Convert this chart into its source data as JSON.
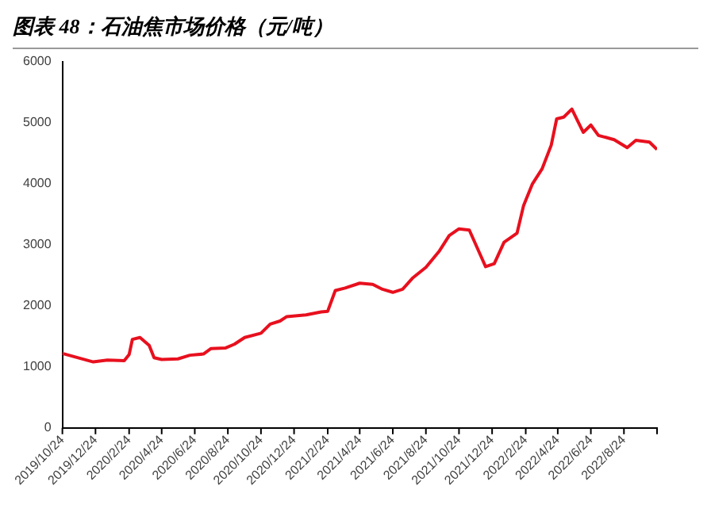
{
  "chart_data": {
    "type": "line",
    "title": "图表 48：石油焦市场价格（元/吨）",
    "x": [
      "2019-10-24",
      "2019-12-20",
      "2020-01-15",
      "2020-02-15",
      "2020-02-24",
      "2020-03-01",
      "2020-03-15",
      "2020-04-01",
      "2020-04-10",
      "2020-04-24",
      "2020-05-24",
      "2020-06-15",
      "2020-07-10",
      "2020-07-24",
      "2020-08-20",
      "2020-09-05",
      "2020-09-24",
      "2020-10-24",
      "2020-11-10",
      "2020-11-28",
      "2020-12-10",
      "2021-01-15",
      "2021-02-12",
      "2021-02-24",
      "2021-03-10",
      "2021-03-28",
      "2021-04-24",
      "2021-05-18",
      "2021-06-05",
      "2021-06-24",
      "2021-07-12",
      "2021-07-30",
      "2021-08-24",
      "2021-09-18",
      "2021-10-06",
      "2021-10-24",
      "2021-11-12",
      "2021-12-02",
      "2021-12-12",
      "2021-12-28",
      "2022-01-15",
      "2022-02-08",
      "2022-02-20",
      "2022-03-08",
      "2022-03-26",
      "2022-04-12",
      "2022-04-22",
      "2022-05-05",
      "2022-05-20",
      "2022-06-10",
      "2022-06-24",
      "2022-07-08",
      "2022-08-06",
      "2022-08-30",
      "2022-09-15",
      "2022-10-10",
      "2022-10-24"
    ],
    "series": [
      {
        "color": "#e8101e",
        "values": [
          1220,
          1080,
          1110,
          1100,
          1200,
          1450,
          1480,
          1350,
          1150,
          1120,
          1130,
          1190,
          1210,
          1300,
          1310,
          1370,
          1480,
          1550,
          1700,
          1750,
          1820,
          1850,
          1900,
          1910,
          2250,
          2290,
          2370,
          2350,
          2270,
          2220,
          2270,
          2450,
          2630,
          2900,
          3150,
          3260,
          3240,
          2840,
          2640,
          2690,
          3040,
          3190,
          3640,
          3990,
          4240,
          4630,
          5060,
          5090,
          5220,
          4840,
          4960,
          4790,
          4720,
          4590,
          4710,
          4680,
          4560
        ]
      }
    ],
    "xlim": [
      "2019-10-24",
      "2022-10-24"
    ],
    "xticks": [
      {
        "value": "2019-10-24",
        "label": "2019/10/24"
      },
      {
        "value": "2019-12-24",
        "label": "2019/12/24"
      },
      {
        "value": "2020-02-24",
        "label": "2020/2/24"
      },
      {
        "value": "2020-04-24",
        "label": "2020/4/24"
      },
      {
        "value": "2020-06-24",
        "label": "2020/6/24"
      },
      {
        "value": "2020-08-24",
        "label": "2020/8/24"
      },
      {
        "value": "2020-10-24",
        "label": "2020/10/24"
      },
      {
        "value": "2020-12-24",
        "label": "2020/12/24"
      },
      {
        "value": "2021-02-24",
        "label": "2021/2/24"
      },
      {
        "value": "2021-04-24",
        "label": "2021/4/24"
      },
      {
        "value": "2021-06-24",
        "label": "2021/6/24"
      },
      {
        "value": "2021-08-24",
        "label": "2021/8/24"
      },
      {
        "value": "2021-10-24",
        "label": "2021/10/24"
      },
      {
        "value": "2021-12-24",
        "label": "2021/12/24"
      },
      {
        "value": "2022-02-24",
        "label": "2022/2/24"
      },
      {
        "value": "2022-04-24",
        "label": "2022/4/24"
      },
      {
        "value": "2022-06-24",
        "label": "2022/6/24"
      },
      {
        "value": "2022-08-24",
        "label": "2022/8/24"
      },
      {
        "value": "2022-10-24",
        "label": null
      }
    ],
    "ylim": [
      0,
      6000
    ],
    "yticks": [
      0,
      1000,
      2000,
      3000,
      4000,
      5000,
      6000
    ],
    "grid": false,
    "legend": false,
    "marker": "none",
    "line_style": "solid"
  }
}
